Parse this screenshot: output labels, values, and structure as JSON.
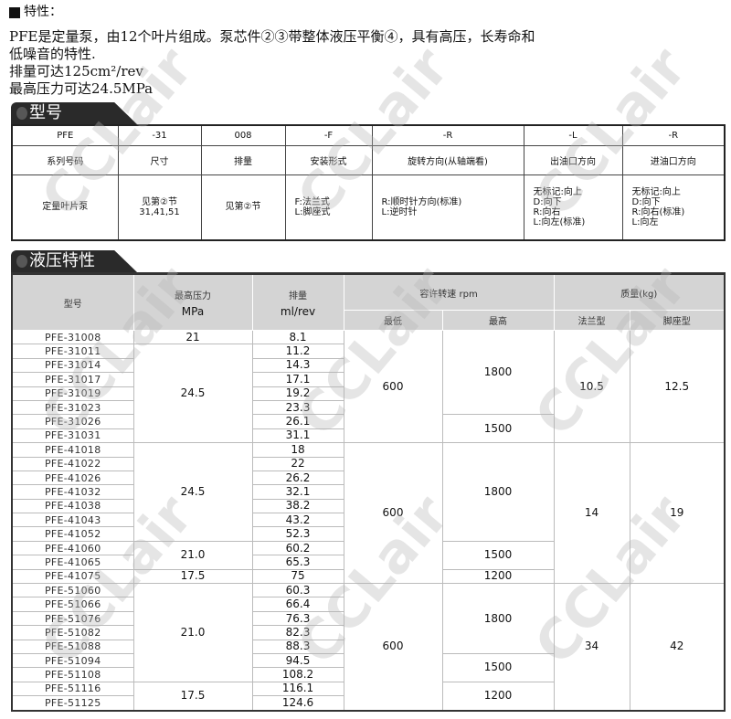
{
  "intro": {
    "heading": "特性：",
    "lines": [
      "PFE是定量泵，由12个叶片组成。泵芯件②③带整体液压平衡④，具有高压，长寿命和",
      "低噪音的特性.",
      "排量可达125cm²/rev",
      "最高压力可达24.5MPa"
    ]
  },
  "model_section": {
    "title": "型号",
    "codes": [
      "PFE",
      "-31",
      "008",
      "-F",
      "-R",
      "-L",
      "-R"
    ],
    "labels": [
      "系列号码",
      "尺寸",
      "排量",
      "安装形式",
      "旋转方向(从轴端看)",
      "出油口方向",
      "进油口方向"
    ],
    "descriptions": [
      "定量叶片泵",
      "见第②节\n31,41,51",
      "见第②节",
      "F:法兰式\nL:脚座式",
      "R:顺时针方向(标准)\nL:逆时针",
      "无标记:向上\nD:向下\nR:向右\nL:向左(标准)",
      "无标记:向上\nD:向下\nR:向右(标准)\nL:向左"
    ]
  },
  "hydraulic_section": {
    "title": "液压特性",
    "headers": {
      "model": "型号",
      "pressure": "最高压力",
      "pressure_unit": "MPa",
      "displacement": "排量",
      "displacement_unit": "ml/rev",
      "speed": "容许转速  rpm",
      "speed_min": "最低",
      "speed_max": "最高",
      "mass": "质量(kg)",
      "mass_flange": "法兰型",
      "mass_foot": "脚座型"
    },
    "rows": [
      [
        "PFE-31008",
        "8.1"
      ],
      [
        "PFE-31011",
        "11.2"
      ],
      [
        "PFE-31014",
        "14.3"
      ],
      [
        "PFE-31017",
        "17.1"
      ],
      [
        "PFE-31019",
        "19.2"
      ],
      [
        "PFE-31023",
        "23.3"
      ],
      [
        "PFE-31026",
        "26.1"
      ],
      [
        "PFE-31031",
        "31.1"
      ],
      [
        "PFE-41018",
        "18"
      ],
      [
        "PFE-41022",
        "22"
      ],
      [
        "PFE-41026",
        "26.2"
      ],
      [
        "PFE-41032",
        "32.1"
      ],
      [
        "PFE-41038",
        "38.2"
      ],
      [
        "PFE-41043",
        "43.2"
      ],
      [
        "PFE-41052",
        "52.3"
      ],
      [
        "PFE-41060",
        "60.2"
      ],
      [
        "PFE-41065",
        "65.3"
      ],
      [
        "PFE-41075",
        "75"
      ],
      [
        "PFE-51060",
        "60.3"
      ],
      [
        "PFE-51066",
        "66.4"
      ],
      [
        "PFE-51076",
        "76.3"
      ],
      [
        "PFE-51082",
        "82.3"
      ],
      [
        "PFE-51088",
        "88.3"
      ],
      [
        "PFE-51094",
        "94.5"
      ],
      [
        "PFE-51108",
        "108.2"
      ],
      [
        "PFE-51116",
        "116.1"
      ],
      [
        "PFE-51125",
        "124.6"
      ]
    ],
    "pressure_groups": [
      [
        "21",
        1
      ],
      [
        "24.5",
        7
      ],
      [
        "24.5",
        7
      ],
      [
        "21.0",
        2
      ],
      [
        "17.5",
        1
      ],
      [
        "21.0",
        7
      ],
      [
        "17.5",
        2
      ]
    ],
    "speed_min_groups": [
      [
        "600",
        8
      ],
      [
        "600",
        10
      ],
      [
        "600",
        9
      ]
    ],
    "speed_max_groups": [
      [
        "1800",
        6
      ],
      [
        "1500",
        2
      ],
      [
        "1800",
        7
      ],
      [
        "1500",
        2
      ],
      [
        "1200",
        1
      ],
      [
        "1800",
        5
      ],
      [
        "1500",
        2
      ],
      [
        "1200",
        2
      ]
    ],
    "mass_flange_groups": [
      [
        "10.5",
        8
      ],
      [
        "14",
        10
      ],
      [
        "34",
        9
      ]
    ],
    "mass_foot_groups": [
      [
        "12.5",
        8
      ],
      [
        "19",
        10
      ],
      [
        "42",
        9
      ]
    ]
  },
  "watermark": "CCLair"
}
